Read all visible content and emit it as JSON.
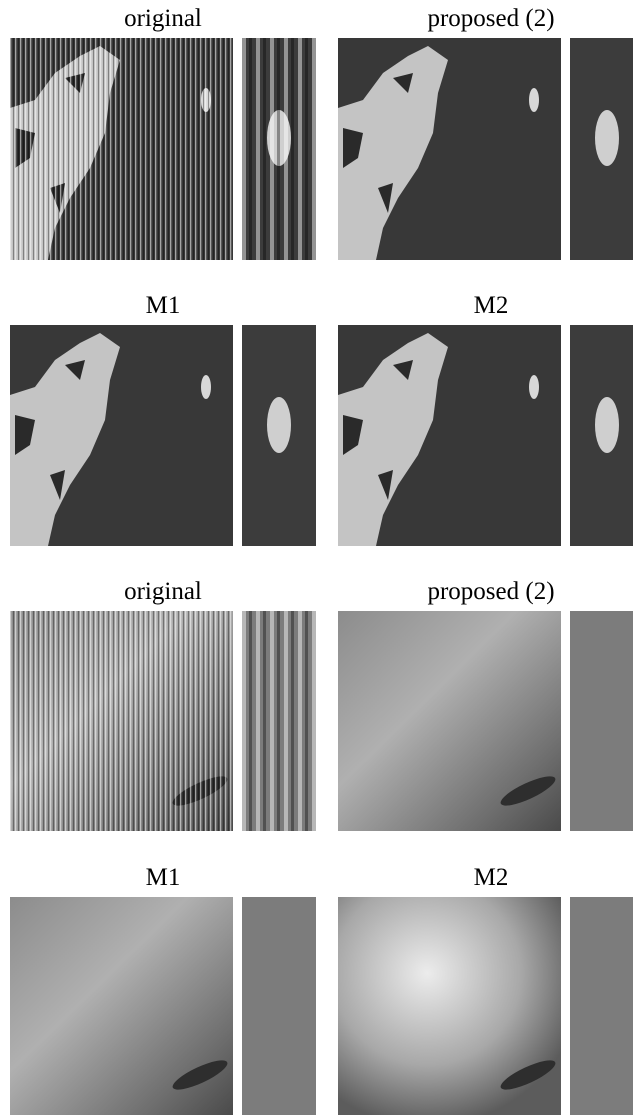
{
  "panels": [
    {
      "title": "original"
    },
    {
      "title": "proposed (2)"
    },
    {
      "title": "M1"
    },
    {
      "title": "M2"
    },
    {
      "title": "original"
    },
    {
      "title": "proposed (2)"
    },
    {
      "title": "M1"
    },
    {
      "title": "M2"
    }
  ]
}
